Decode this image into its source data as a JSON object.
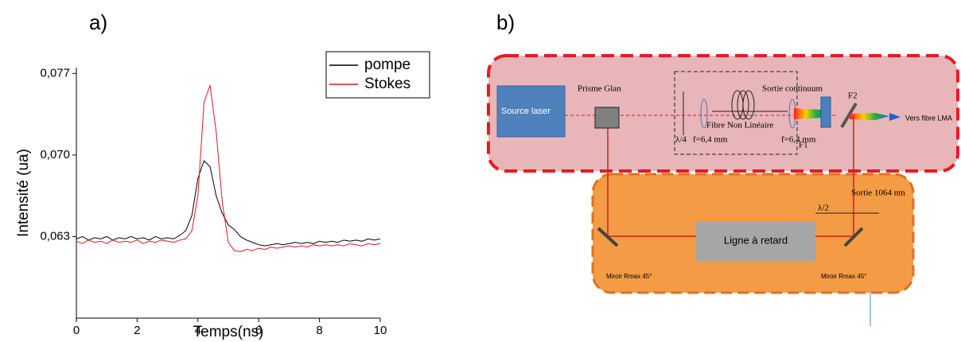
{
  "panel_labels": [
    "a)",
    "b)"
  ],
  "chart_data": {
    "type": "line",
    "x_label": "Temps(ns)",
    "y_label": "Intensité (ua)",
    "x": [
      0,
      0.2,
      0.4,
      0.6,
      0.8,
      1,
      1.2,
      1.4,
      1.6,
      1.8,
      2,
      2.2,
      2.4,
      2.6,
      2.8,
      3,
      3.2,
      3.4,
      3.6,
      3.8,
      4,
      4.2,
      4.4,
      4.6,
      4.8,
      5,
      5.2,
      5.4,
      5.6,
      5.8,
      6,
      6.2,
      6.4,
      6.6,
      6.8,
      7,
      7.2,
      7.4,
      7.6,
      7.8,
      8,
      8.2,
      8.4,
      8.6,
      8.8,
      9,
      9.2,
      9.4,
      9.6,
      9.8,
      10
    ],
    "series": [
      {
        "name": "pompe",
        "color": "#000000",
        "values": [
          0.0628,
          0.063,
          0.0627,
          0.0629,
          0.0628,
          0.063,
          0.0627,
          0.0629,
          0.0628,
          0.063,
          0.0628,
          0.0629,
          0.0627,
          0.063,
          0.0628,
          0.0629,
          0.0628,
          0.0631,
          0.0635,
          0.0648,
          0.068,
          0.0695,
          0.069,
          0.0665,
          0.065,
          0.064,
          0.0636,
          0.063,
          0.0627,
          0.0625,
          0.0623,
          0.0622,
          0.0623,
          0.0624,
          0.0623,
          0.0624,
          0.0625,
          0.0624,
          0.0625,
          0.0624,
          0.0626,
          0.0625,
          0.0626,
          0.0625,
          0.0627,
          0.0626,
          0.0627,
          0.0626,
          0.0628,
          0.0627,
          0.0628
        ]
      },
      {
        "name": "Stokes",
        "color": "#e8141b",
        "values": [
          0.0626,
          0.0624,
          0.0627,
          0.0625,
          0.0626,
          0.0624,
          0.0627,
          0.0625,
          0.0626,
          0.0625,
          0.0627,
          0.0624,
          0.0626,
          0.0625,
          0.0627,
          0.0626,
          0.0625,
          0.0627,
          0.0628,
          0.0635,
          0.0665,
          0.0745,
          0.076,
          0.072,
          0.066,
          0.0625,
          0.0618,
          0.0617,
          0.0619,
          0.0618,
          0.062,
          0.0619,
          0.0621,
          0.062,
          0.0621,
          0.0622,
          0.0621,
          0.0622,
          0.0621,
          0.0623,
          0.0622,
          0.0623,
          0.0622,
          0.0623,
          0.0622,
          0.0624,
          0.0623,
          0.0622,
          0.0624,
          0.0623,
          0.0624
        ]
      }
    ],
    "xlim": [
      0,
      10
    ],
    "xticks": [
      0,
      2,
      4,
      6,
      8,
      10
    ],
    "ylim": [
      0.056,
      0.0775
    ],
    "yticks": [
      {
        "value": 0.063,
        "label": "0,063"
      },
      {
        "value": 0.07,
        "label": "0,070"
      },
      {
        "value": 0.077,
        "label": "0,077"
      }
    ],
    "legend": "upper right",
    "grid": false
  },
  "diagram": {
    "source": "Source laser",
    "prism": "Prisme Glan",
    "continuum": "Sortie continuum",
    "fiber": "Fibre Non Linéaire",
    "quarter_wave": "λ/4",
    "lens1": "f=6,4 mm",
    "lens2": "f=6,4 mm",
    "f1": "F1",
    "f2": "F2",
    "lma": "Vers fibre LMA",
    "output_1064": "Sortie 1064 nm",
    "half_wave": "λ/2",
    "delay": "Ligne à retard",
    "mirror1": "Miroir Rmax 45°",
    "mirror2": "Miroir Rmax 45°"
  }
}
